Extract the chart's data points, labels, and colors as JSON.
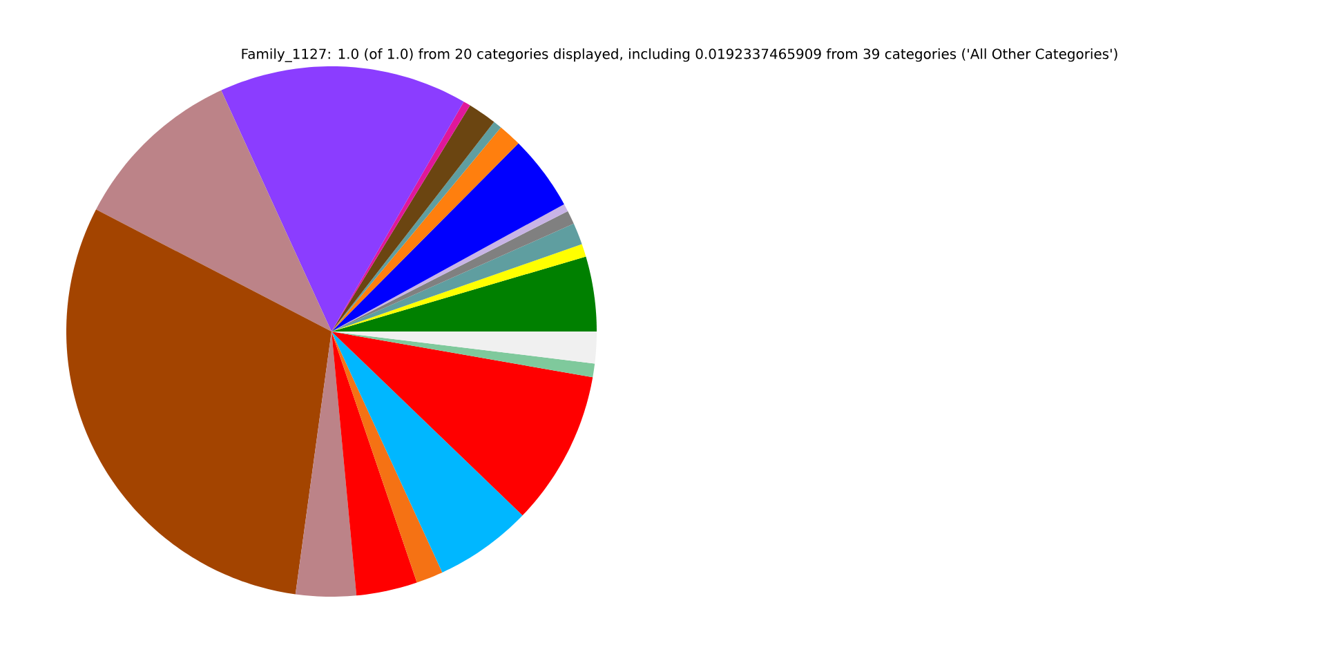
{
  "chart_data": {
    "type": "pie",
    "title": "Family_1127: 1.0 (of 1.0) from 20 categories displayed, including 0.0192337465909 from 39 categories ('All Other Categories')",
    "categories": [
      null,
      null,
      null,
      null,
      null,
      null,
      null,
      null,
      null,
      null,
      null,
      null,
      null,
      null,
      null,
      null,
      null,
      null,
      null,
      null
    ],
    "values": [
      4.56,
      0.78,
      1.33,
      0.83,
      0.47,
      4.58,
      1.42,
      0.53,
      1.75,
      0.44,
      15.14,
      10.56,
      30.44,
      3.67,
      3.72,
      1.64,
      5.94,
      9.44,
      0.83,
      1.93
    ],
    "colors": [
      "#008000",
      "#ffff00",
      "#5f9ea0",
      "#808080",
      "#c8b4e6",
      "#0000ff",
      "#ff7f0e",
      "#5f9ea0",
      "#6b4511",
      "#e0179b",
      "#8b3dff",
      "#bc8388",
      "#a34400",
      "#bc8388",
      "#ff0000",
      "#f57214",
      "#00b7ff",
      "#ff0000",
      "#7fc99c",
      "#f0f0f0"
    ]
  }
}
